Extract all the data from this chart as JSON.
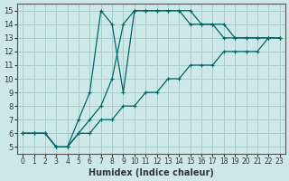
{
  "xlabel": "Humidex (Indice chaleur)",
  "bg_color": "#cce8e8",
  "grid_color": "#aacccc",
  "line_color": "#006666",
  "xlim": [
    -0.5,
    23.5
  ],
  "ylim": [
    4.5,
    15.5
  ],
  "xticks": [
    0,
    1,
    2,
    3,
    4,
    5,
    6,
    7,
    8,
    9,
    10,
    11,
    12,
    13,
    14,
    15,
    16,
    17,
    18,
    19,
    20,
    21,
    22,
    23
  ],
  "yticks": [
    5,
    6,
    7,
    8,
    9,
    10,
    11,
    12,
    13,
    14,
    15
  ],
  "line1_x": [
    0,
    1,
    2,
    3,
    4,
    4,
    5,
    6,
    7,
    8,
    9,
    10,
    11,
    12,
    13,
    14,
    15,
    16,
    17,
    18,
    19,
    20,
    21,
    22,
    23
  ],
  "line1_y": [
    6,
    6,
    6,
    5,
    5,
    5,
    7,
    9,
    15,
    14,
    9,
    15,
    15,
    15,
    15,
    15,
    14,
    14,
    14,
    13,
    13,
    13,
    13,
    13,
    13
  ],
  "line2_x": [
    0,
    1,
    2,
    3,
    4,
    5,
    6,
    7,
    8,
    9,
    10,
    11,
    12,
    13,
    14,
    15,
    16,
    17,
    18,
    19,
    20,
    21,
    22,
    23
  ],
  "line2_y": [
    6,
    6,
    6,
    5,
    5,
    6,
    7,
    8,
    10,
    14,
    15,
    15,
    15,
    15,
    15,
    15,
    14,
    14,
    14,
    13,
    13,
    13,
    13,
    13
  ],
  "line3_x": [
    0,
    1,
    2,
    3,
    4,
    5,
    6,
    7,
    8,
    9,
    10,
    11,
    12,
    13,
    14,
    15,
    16,
    17,
    18,
    19,
    20,
    21,
    22,
    23
  ],
  "line3_y": [
    6,
    6,
    6,
    5,
    5,
    6,
    6,
    7,
    7,
    8,
    8,
    9,
    9,
    10,
    10,
    11,
    11,
    11,
    12,
    12,
    12,
    12,
    13,
    13
  ]
}
